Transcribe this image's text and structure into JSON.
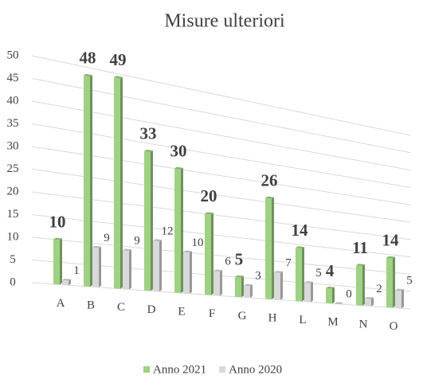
{
  "chart_data": {
    "type": "bar3d",
    "title": "Misure ulteriori",
    "categories": [
      "A",
      "B",
      "C",
      "D",
      "E",
      "F",
      "G",
      "H",
      "L",
      "M",
      "N",
      "O"
    ],
    "series": [
      {
        "name": "Anno 2021",
        "color": "#9fd184",
        "values": [
          10,
          48,
          49,
          33,
          30,
          20,
          5,
          26,
          14,
          4,
          11,
          14
        ]
      },
      {
        "name": "Anno 2020",
        "color": "#d9d9d9",
        "values": [
          1,
          9,
          9,
          12,
          10,
          6,
          3,
          7,
          5,
          0,
          2,
          5
        ]
      }
    ],
    "ylim": [
      0,
      50
    ],
    "yticks": [
      0,
      5,
      10,
      15,
      20,
      25,
      30,
      35,
      40,
      45,
      50
    ],
    "grid": true,
    "legend": "bottom"
  }
}
